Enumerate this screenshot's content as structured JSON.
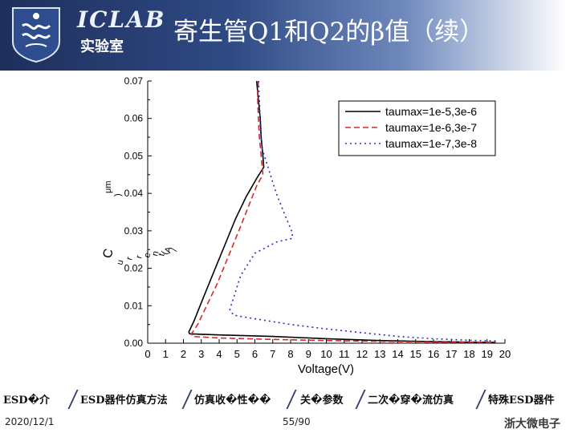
{
  "header": {
    "brand": "ICLAB",
    "brand_sub": "实验室",
    "title": "寄生管Q1和Q2的β值（续）"
  },
  "colors": {
    "header_dark": "#1e2f5c",
    "series_1": "#000000",
    "series_2": "#d42a2a",
    "series_3": "#2b2bcc"
  },
  "chart_data": {
    "type": "line",
    "xlabel": "Voltage(V)",
    "ylabel_lines": [
      "C",
      "u",
      "r",
      "r",
      "e",
      "n",
      "t",
      "(",
      "A",
      "/",
      "μm",
      ")"
    ],
    "xlim": [
      0,
      20
    ],
    "ylim": [
      0,
      0.07
    ],
    "xticks": [
      "0",
      "1",
      "2",
      "3",
      "4",
      "5",
      "6",
      "7",
      "8",
      "9",
      "10",
      "11",
      "12",
      "13",
      "14",
      "15",
      "16",
      "17",
      "18",
      "19",
      "20"
    ],
    "yticks": [
      "0.00",
      "0.01",
      "0.02",
      "0.03",
      "0.04",
      "0.05",
      "0.06",
      "0.07"
    ],
    "legend_position": "top-right",
    "series": [
      {
        "name": "taumax=1e-5,3e-6",
        "style": "solid",
        "points": [
          [
            6.1,
            0.07
          ],
          [
            6.2,
            0.065
          ],
          [
            6.3,
            0.06
          ],
          [
            6.35,
            0.055
          ],
          [
            6.45,
            0.05
          ],
          [
            6.5,
            0.047
          ],
          [
            6.1,
            0.044
          ],
          [
            5.5,
            0.039
          ],
          [
            4.9,
            0.033
          ],
          [
            4.3,
            0.026
          ],
          [
            3.7,
            0.019
          ],
          [
            3.1,
            0.012
          ],
          [
            2.6,
            0.006
          ],
          [
            2.3,
            0.003
          ],
          [
            2.35,
            0.0025
          ],
          [
            4,
            0.0022
          ],
          [
            7,
            0.0018
          ],
          [
            10,
            0.0012
          ],
          [
            13,
            0.0007
          ],
          [
            16,
            0.0004
          ],
          [
            19.5,
            0.0002
          ]
        ]
      },
      {
        "name": "taumax=1e-6,3e-7",
        "style": "dashed",
        "points": [
          [
            6.2,
            0.07
          ],
          [
            6.15,
            0.066
          ],
          [
            6.2,
            0.06
          ],
          [
            6.25,
            0.055
          ],
          [
            6.35,
            0.05
          ],
          [
            6.45,
            0.045
          ],
          [
            6.1,
            0.042
          ],
          [
            5.6,
            0.036
          ],
          [
            5.1,
            0.03
          ],
          [
            4.5,
            0.023
          ],
          [
            3.9,
            0.016
          ],
          [
            3.3,
            0.01
          ],
          [
            2.8,
            0.005
          ],
          [
            2.45,
            0.0025
          ],
          [
            2.5,
            0.0018
          ],
          [
            4,
            0.0014
          ],
          [
            7,
            0.001
          ],
          [
            10,
            0.0007
          ],
          [
            13,
            0.0005
          ],
          [
            16,
            0.0003
          ],
          [
            19.5,
            0.0002
          ]
        ]
      },
      {
        "name": "taumax=1e-7,3e-8",
        "style": "dotted",
        "points": [
          [
            6.2,
            0.07
          ],
          [
            6.25,
            0.065
          ],
          [
            6.3,
            0.058
          ],
          [
            6.4,
            0.052
          ],
          [
            6.8,
            0.046
          ],
          [
            7.2,
            0.04
          ],
          [
            7.7,
            0.034
          ],
          [
            8.1,
            0.0295
          ],
          [
            8.1,
            0.028
          ],
          [
            7.2,
            0.027
          ],
          [
            6,
            0.024
          ],
          [
            5.2,
            0.018
          ],
          [
            4.8,
            0.012
          ],
          [
            4.6,
            0.009
          ],
          [
            4.8,
            0.0075
          ],
          [
            6,
            0.0065
          ],
          [
            8,
            0.005
          ],
          [
            10,
            0.0038
          ],
          [
            12,
            0.0028
          ],
          [
            14,
            0.0018
          ],
          [
            16,
            0.0012
          ],
          [
            18,
            0.0008
          ],
          [
            19.5,
            0.0006
          ]
        ]
      }
    ]
  },
  "nav": {
    "items": [
      "ESD�介",
      "ESD器件仿真方法",
      "仿真收�性��",
      "关�参数",
      "二次�穿�流仿真",
      "特殊ESD器件"
    ]
  },
  "footer": {
    "date": "2020/12/1",
    "page": "55/90",
    "school": "浙大微电子"
  }
}
